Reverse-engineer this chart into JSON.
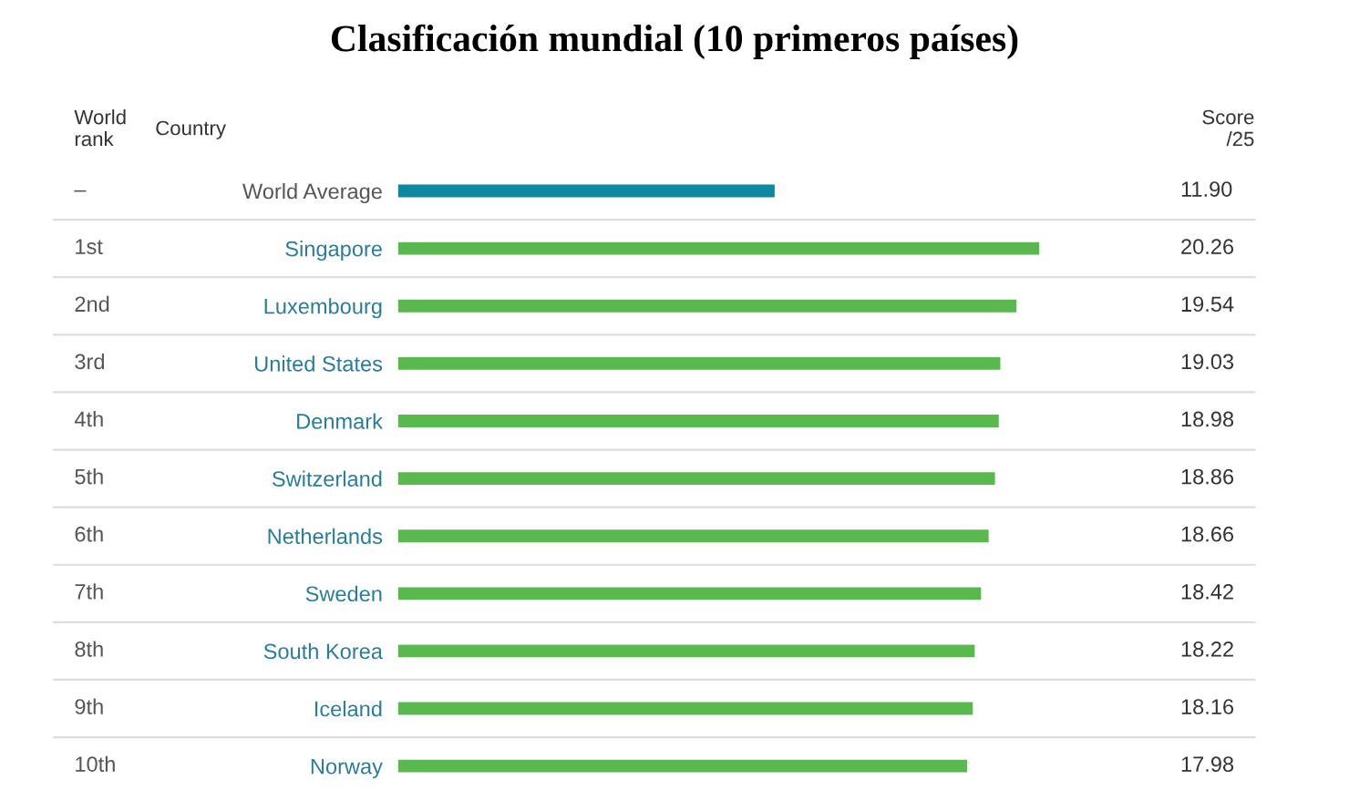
{
  "chart_data": {
    "type": "bar",
    "orientation": "horizontal",
    "title": "Clasificación mundial (10 primeros países)",
    "categories": [
      "World Average",
      "Singapore",
      "Luxembourg",
      "United States",
      "Denmark",
      "Switzerland",
      "Netherlands",
      "Sweden",
      "South Korea",
      "Iceland",
      "Norway"
    ],
    "values": [
      11.9,
      20.26,
      19.54,
      19.03,
      18.98,
      18.86,
      18.66,
      18.42,
      18.22,
      18.16,
      17.98
    ],
    "colors": [
      "#0e87a3",
      "#5ab94e",
      "#5ab94e",
      "#5ab94e",
      "#5ab94e",
      "#5ab94e",
      "#5ab94e",
      "#5ab94e",
      "#5ab94e",
      "#5ab94e",
      "#5ab94e"
    ],
    "value_labels": [
      "11.90",
      "20.26",
      "19.54",
      "19.03",
      "18.98",
      "18.86",
      "18.66",
      "18.42",
      "18.22",
      "18.16",
      "17.98"
    ],
    "tick_labels": "y",
    "grid": false,
    "annotations": [
      "World rank",
      "Country",
      "Score /25",
      "–",
      "1st",
      "2nd",
      "3rd",
      "4th",
      "5th",
      "6th",
      "7th",
      "8th",
      "9th",
      "10th"
    ]
  }
}
